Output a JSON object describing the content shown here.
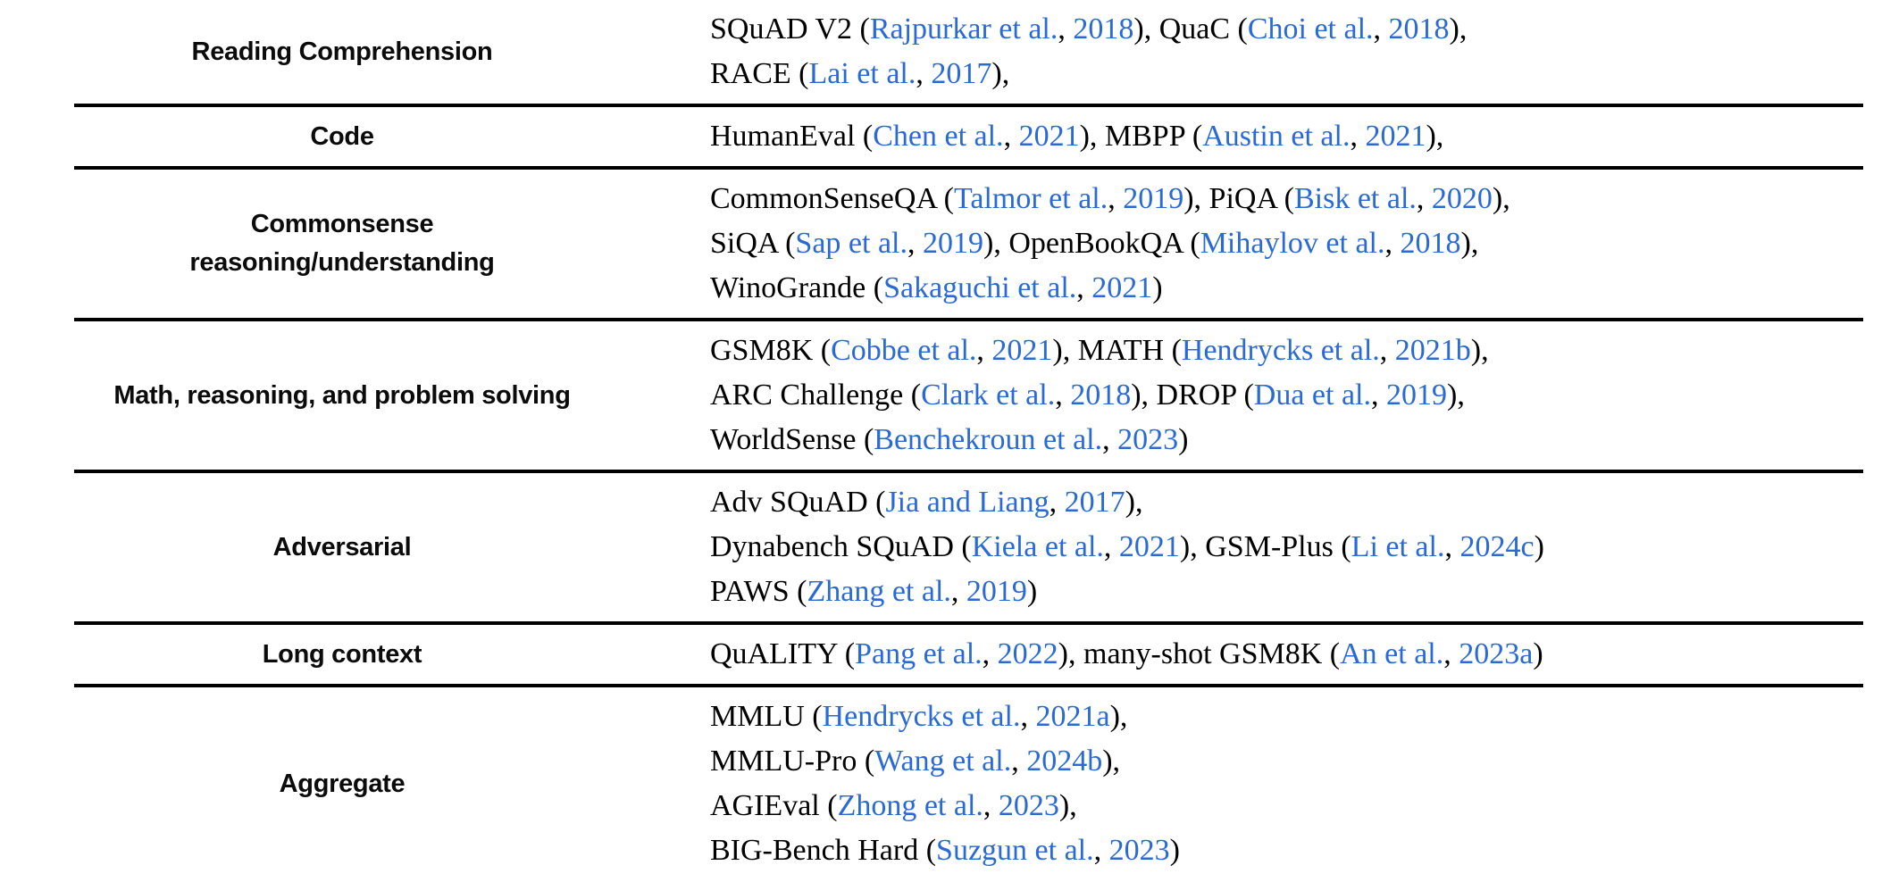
{
  "colors": {
    "citation_blue": "#2a6ad4",
    "text_black": "#000000",
    "rule_black": "#000000"
  },
  "table": {
    "rows": [
      {
        "category_lines": [
          "Reading Comprehension"
        ],
        "content_lines": [
          [
            {
              "text": "SQuAD V2 ("
            },
            {
              "text": "Rajpurkar et al.",
              "cite": true
            },
            {
              "text": ", "
            },
            {
              "text": "2018",
              "cite": true
            },
            {
              "text": "), QuaC ("
            },
            {
              "text": "Choi et al.",
              "cite": true
            },
            {
              "text": ", "
            },
            {
              "text": "2018",
              "cite": true
            },
            {
              "text": "),"
            }
          ],
          [
            {
              "text": "RACE ("
            },
            {
              "text": "Lai et al.",
              "cite": true
            },
            {
              "text": ", "
            },
            {
              "text": "2017",
              "cite": true
            },
            {
              "text": "),"
            }
          ]
        ]
      },
      {
        "category_lines": [
          "Code"
        ],
        "content_lines": [
          [
            {
              "text": "HumanEval ("
            },
            {
              "text": "Chen et al.",
              "cite": true
            },
            {
              "text": ", "
            },
            {
              "text": "2021",
              "cite": true
            },
            {
              "text": "), MBPP ("
            },
            {
              "text": "Austin et al.",
              "cite": true
            },
            {
              "text": ", "
            },
            {
              "text": "2021",
              "cite": true
            },
            {
              "text": "),"
            }
          ]
        ]
      },
      {
        "category_lines": [
          "Commonsense",
          "reasoning/understanding"
        ],
        "content_lines": [
          [
            {
              "text": "CommonSenseQA ("
            },
            {
              "text": "Talmor et al.",
              "cite": true
            },
            {
              "text": ", "
            },
            {
              "text": "2019",
              "cite": true
            },
            {
              "text": "), PiQA ("
            },
            {
              "text": "Bisk et al.",
              "cite": true
            },
            {
              "text": ", "
            },
            {
              "text": "2020",
              "cite": true
            },
            {
              "text": "),"
            }
          ],
          [
            {
              "text": "SiQA ("
            },
            {
              "text": "Sap et al.",
              "cite": true
            },
            {
              "text": ", "
            },
            {
              "text": "2019",
              "cite": true
            },
            {
              "text": "), OpenBookQA ("
            },
            {
              "text": "Mihaylov et al.",
              "cite": true
            },
            {
              "text": ", "
            },
            {
              "text": "2018",
              "cite": true
            },
            {
              "text": "),"
            }
          ],
          [
            {
              "text": "WinoGrande ("
            },
            {
              "text": "Sakaguchi et al.",
              "cite": true
            },
            {
              "text": ", "
            },
            {
              "text": "2021",
              "cite": true
            },
            {
              "text": ")"
            }
          ]
        ]
      },
      {
        "category_lines": [
          "Math, reasoning, and problem solving"
        ],
        "content_lines": [
          [
            {
              "text": "GSM8K ("
            },
            {
              "text": "Cobbe et al.",
              "cite": true
            },
            {
              "text": ", "
            },
            {
              "text": "2021",
              "cite": true
            },
            {
              "text": "), MATH ("
            },
            {
              "text": "Hendrycks et al.",
              "cite": true
            },
            {
              "text": ", "
            },
            {
              "text": "2021b",
              "cite": true
            },
            {
              "text": "),"
            }
          ],
          [
            {
              "text": "ARC Challenge ("
            },
            {
              "text": "Clark et al.",
              "cite": true
            },
            {
              "text": ", "
            },
            {
              "text": "2018",
              "cite": true
            },
            {
              "text": "), DROP ("
            },
            {
              "text": "Dua et al.",
              "cite": true
            },
            {
              "text": ", "
            },
            {
              "text": "2019",
              "cite": true
            },
            {
              "text": "),"
            }
          ],
          [
            {
              "text": "WorldSense ("
            },
            {
              "text": "Benchekroun et al.",
              "cite": true
            },
            {
              "text": ", "
            },
            {
              "text": "2023",
              "cite": true
            },
            {
              "text": ")"
            }
          ]
        ]
      },
      {
        "category_lines": [
          "Adversarial"
        ],
        "content_lines": [
          [
            {
              "text": "Adv SQuAD ("
            },
            {
              "text": "Jia and Liang",
              "cite": true
            },
            {
              "text": ", "
            },
            {
              "text": "2017",
              "cite": true
            },
            {
              "text": "),"
            }
          ],
          [
            {
              "text": "Dynabench SQuAD ("
            },
            {
              "text": "Kiela et al.",
              "cite": true
            },
            {
              "text": ", "
            },
            {
              "text": "2021",
              "cite": true
            },
            {
              "text": "), GSM-Plus ("
            },
            {
              "text": "Li et al.",
              "cite": true
            },
            {
              "text": ", "
            },
            {
              "text": "2024c",
              "cite": true
            },
            {
              "text": ")"
            }
          ],
          [
            {
              "text": "PAWS ("
            },
            {
              "text": "Zhang et al.",
              "cite": true
            },
            {
              "text": ", "
            },
            {
              "text": "2019",
              "cite": true
            },
            {
              "text": ")"
            }
          ]
        ]
      },
      {
        "category_lines": [
          "Long context"
        ],
        "content_lines": [
          [
            {
              "text": "QuALITY ("
            },
            {
              "text": "Pang et al.",
              "cite": true
            },
            {
              "text": ", "
            },
            {
              "text": "2022",
              "cite": true
            },
            {
              "text": "), many-shot GSM8K ("
            },
            {
              "text": "An et al.",
              "cite": true
            },
            {
              "text": ", "
            },
            {
              "text": "2023a",
              "cite": true
            },
            {
              "text": ")"
            }
          ]
        ]
      },
      {
        "category_lines": [
          "Aggregate"
        ],
        "content_lines": [
          [
            {
              "text": "MMLU ("
            },
            {
              "text": "Hendrycks et al.",
              "cite": true
            },
            {
              "text": ", "
            },
            {
              "text": "2021a",
              "cite": true
            },
            {
              "text": "),"
            }
          ],
          [
            {
              "text": "MMLU-Pro ("
            },
            {
              "text": "Wang et al.",
              "cite": true
            },
            {
              "text": ", "
            },
            {
              "text": "2024b",
              "cite": true
            },
            {
              "text": "),"
            }
          ],
          [
            {
              "text": "AGIEval ("
            },
            {
              "text": "Zhong et al.",
              "cite": true
            },
            {
              "text": ", "
            },
            {
              "text": "2023",
              "cite": true
            },
            {
              "text": "),"
            }
          ],
          [
            {
              "text": "BIG-Bench Hard ("
            },
            {
              "text": "Suzgun et al.",
              "cite": true
            },
            {
              "text": ", "
            },
            {
              "text": "2023",
              "cite": true
            },
            {
              "text": ")"
            }
          ]
        ]
      }
    ]
  }
}
